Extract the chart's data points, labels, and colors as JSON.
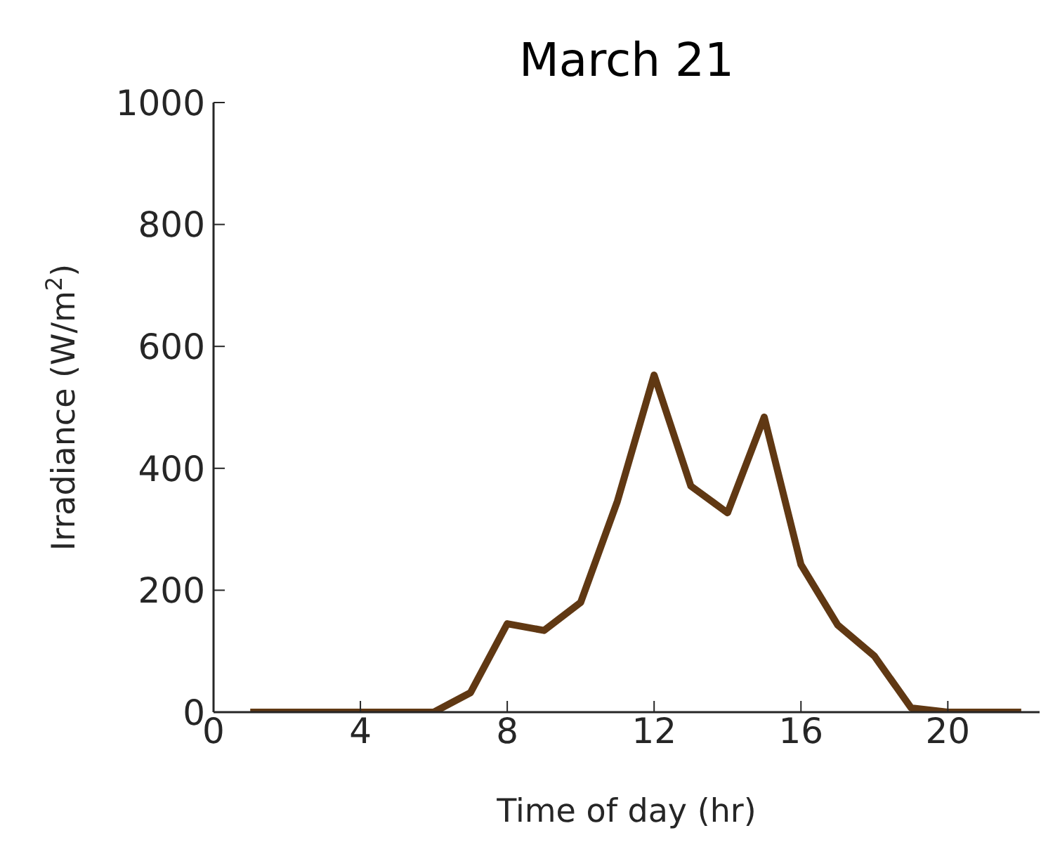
{
  "chart_data": {
    "type": "line",
    "title": "March 21",
    "xlabel": "Time of day (hr)",
    "ylabel": "Irradiance (W/m$^{2}$)",
    "x": [
      1,
      2,
      3,
      4,
      5,
      6,
      7,
      8,
      9,
      10,
      11,
      12,
      13,
      14,
      15,
      16,
      17,
      18,
      19,
      20,
      21,
      22
    ],
    "series": [
      {
        "color": "#603813",
        "values": [
          0,
          0,
          0,
          0,
          0,
          0,
          32,
          145,
          134,
          180,
          346,
          553,
          371,
          327,
          484,
          242,
          143,
          92,
          7,
          0,
          0,
          0
        ]
      }
    ],
    "xlim": [
      0,
      22.5
    ],
    "xticks": [
      0,
      4,
      8,
      12,
      16,
      20
    ],
    "ylim": [
      0,
      1000
    ],
    "yticks": [
      0,
      200,
      400,
      600,
      800,
      1000
    ],
    "grid": false,
    "legend": false,
    "marker": "none",
    "line_style": "solid"
  }
}
